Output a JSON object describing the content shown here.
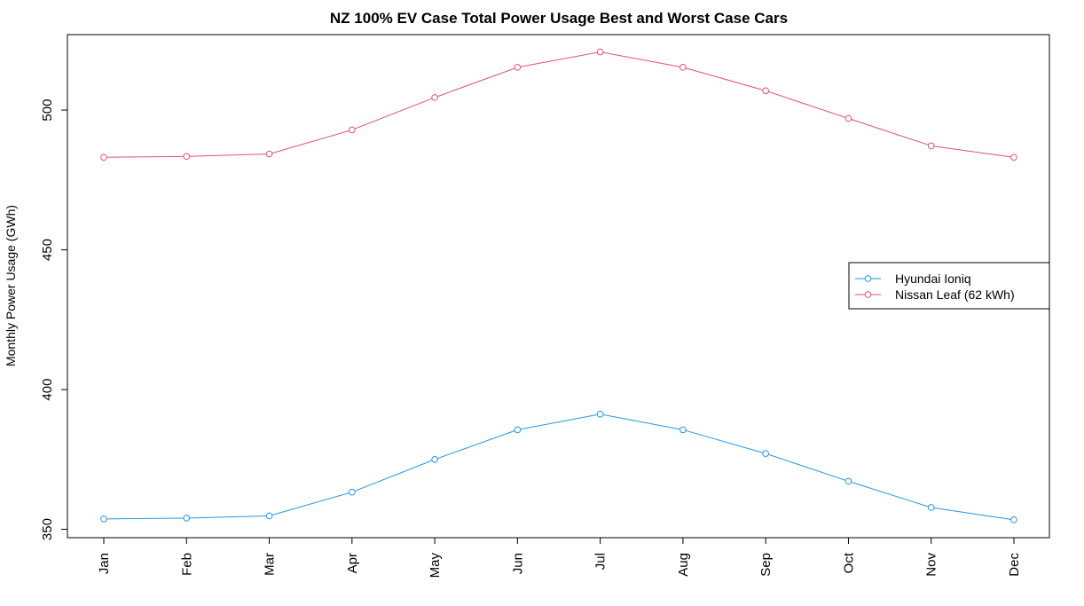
{
  "chart_data": {
    "type": "line",
    "title": "NZ 100% EV Case Total Power Usage Best and Worst Case Cars",
    "xlabel": "",
    "ylabel": "Monthly Power Usage (GWh)",
    "categories": [
      "Jan",
      "Feb",
      "Mar",
      "Apr",
      "May",
      "Jun",
      "Jul",
      "Aug",
      "Sep",
      "Oct",
      "Nov",
      "Dec"
    ],
    "yticks": [
      350,
      400,
      450,
      500
    ],
    "ylim": [
      347,
      527
    ],
    "grid": false,
    "legend_position": "right",
    "series": [
      {
        "name": "Nissan Leaf (62 kWh)",
        "color": "#DF536B",
        "values": [
          483.1,
          483.4,
          484.3,
          492.9,
          504.5,
          515.3,
          520.8,
          515.3,
          506.9,
          497.0,
          487.2,
          483.1
        ]
      },
      {
        "name": "Hyundai Ioniq",
        "color": "#2297E6",
        "values": [
          353.7,
          354.0,
          354.8,
          363.3,
          375.0,
          385.6,
          391.2,
          385.6,
          377.1,
          367.2,
          357.8,
          353.4
        ]
      }
    ],
    "legend_order": [
      "Hyundai Ioniq",
      "Nissan Leaf (62 kWh)"
    ]
  }
}
